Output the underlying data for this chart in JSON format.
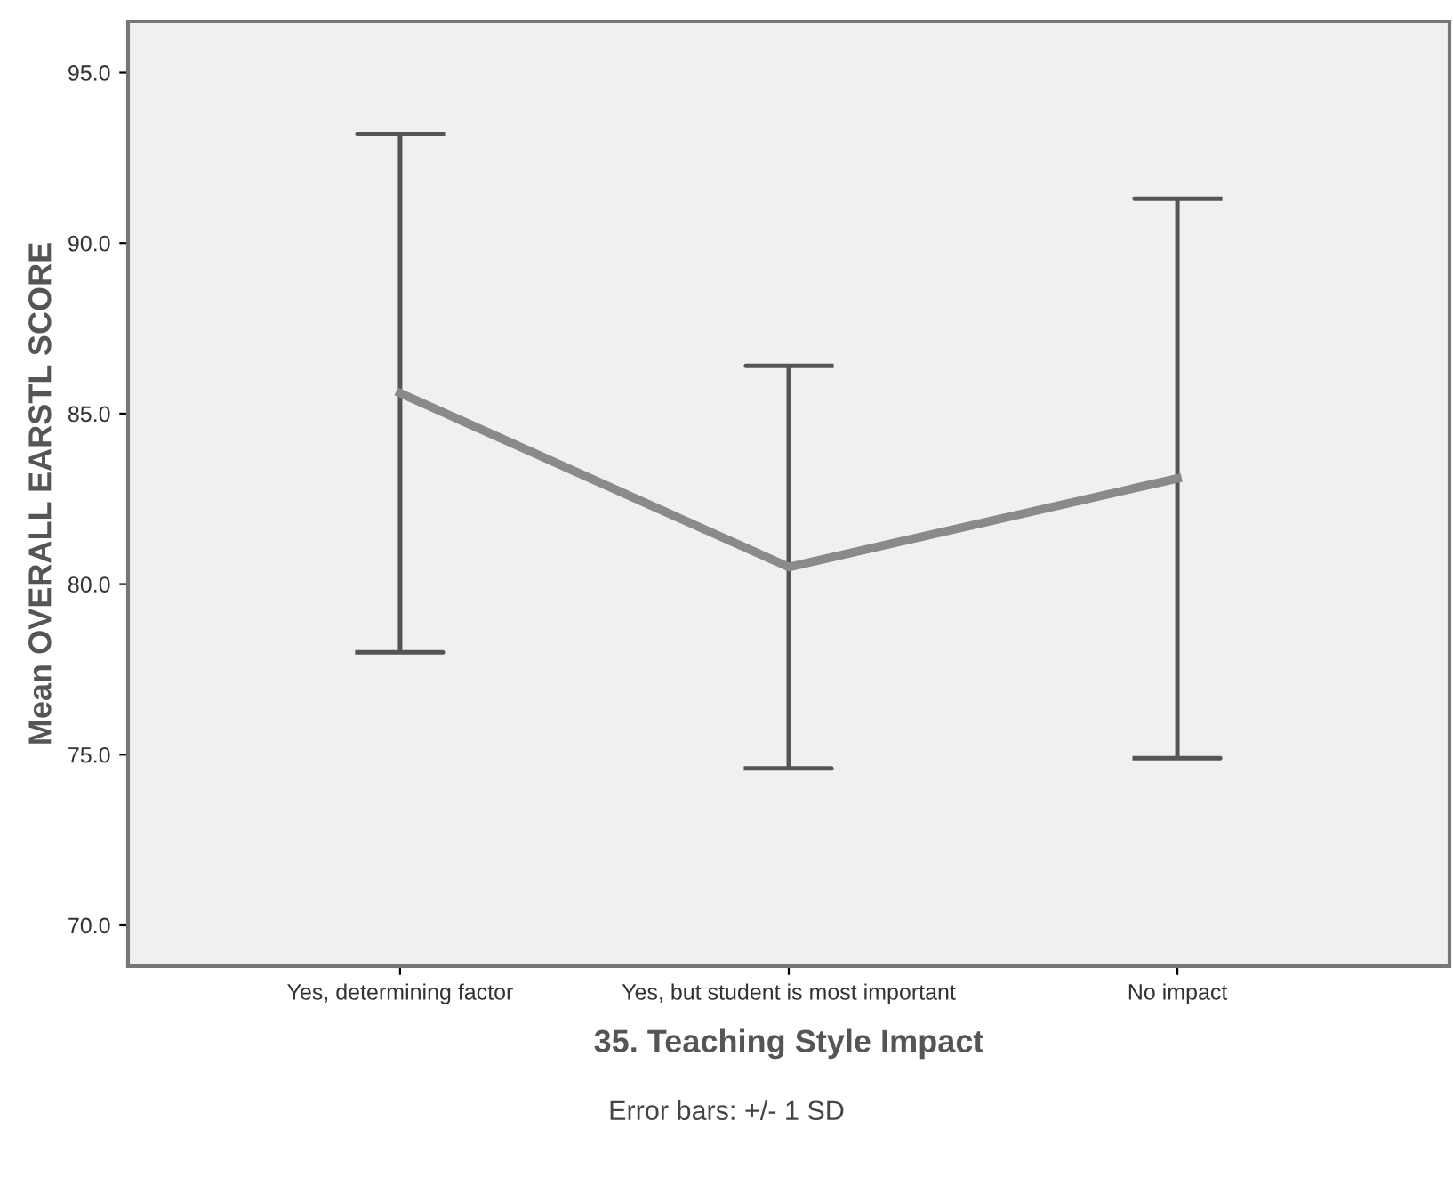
{
  "chart_data": {
    "type": "line",
    "xlabel": "35. Teaching Style Impact",
    "ylabel": "Mean OVERALL EARSTL SCORE",
    "categories": [
      "Yes, determining factor",
      "Yes, but student is most important",
      "No impact"
    ],
    "color": "#8a8a8a",
    "values": [
      85.6,
      80.5,
      83.1
    ],
    "errors": [
      7.6,
      5.9,
      8.2
    ],
    "ylim": [
      68.8,
      96.5
    ],
    "yticks": [
      {
        "value": 70,
        "label": "70.0"
      },
      {
        "value": 75,
        "label": "75.0"
      },
      {
        "value": 80,
        "label": "80.0"
      },
      {
        "value": 85,
        "label": "85.0"
      },
      {
        "value": 90,
        "label": "90.0"
      },
      {
        "value": 95,
        "label": "95.0"
      }
    ],
    "grid": false,
    "legend": false,
    "marker": "none",
    "line_style": "solid",
    "annotations": [
      "Error bars: +/- 1 SD"
    ]
  }
}
